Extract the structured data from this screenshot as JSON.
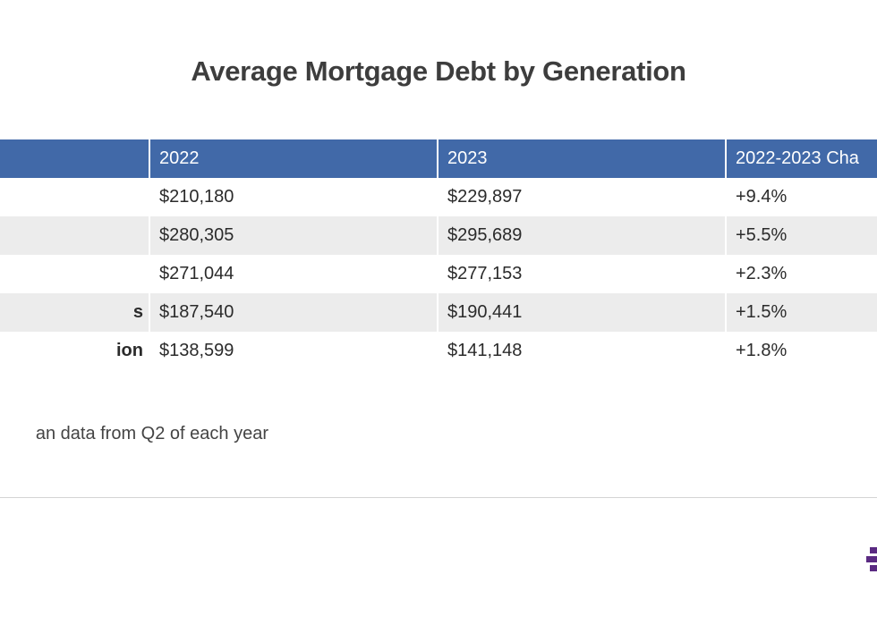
{
  "chart_data": {
    "type": "table",
    "title": "Average Mortgage Debt by Generation",
    "columns": [
      "",
      "2022",
      "2023",
      "2022-2023 Cha"
    ],
    "rows": [
      {
        "label": "",
        "values": [
          "$210,180",
          "$229,897",
          "+9.4%"
        ]
      },
      {
        "label": "",
        "values": [
          "$280,305",
          "$295,689",
          "+5.5%"
        ]
      },
      {
        "label": "",
        "values": [
          "$271,044",
          "$277,153",
          "+2.3%"
        ]
      },
      {
        "label": "s",
        "values": [
          "$187,540",
          "$190,441",
          "+1.5%"
        ]
      },
      {
        "label": "ion",
        "values": [
          "$138,599",
          "$141,148",
          "+1.8%"
        ]
      }
    ],
    "note": "an data from Q2 of each year"
  },
  "colors": {
    "header_bg": "#4169a8",
    "stripe": "#ececec",
    "logo": "#5a2a82"
  },
  "logo": {
    "icon": "brand-logo-icon"
  }
}
